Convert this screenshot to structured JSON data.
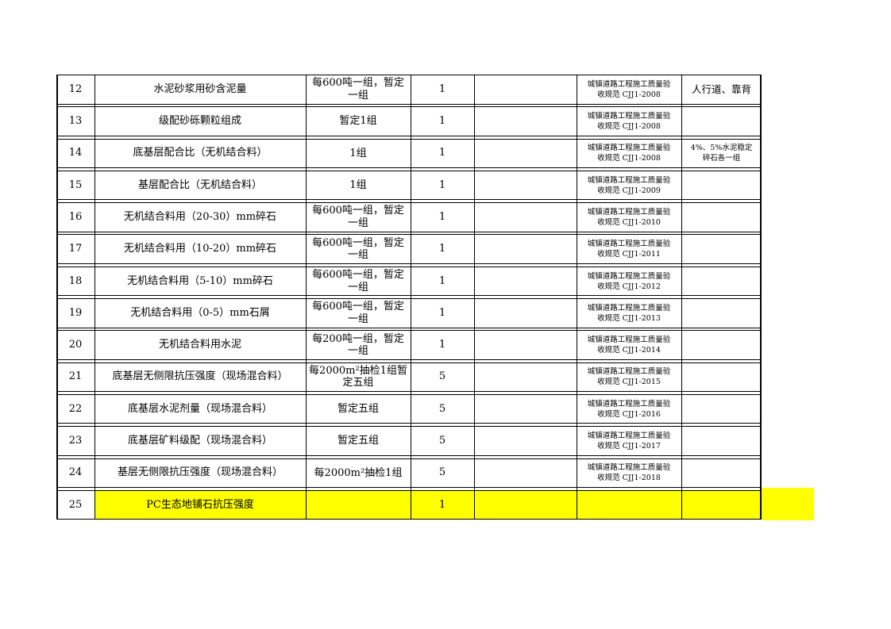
{
  "document": {
    "highlight_color": "#FFFF00",
    "rows": [
      {
        "no": "12",
        "item": "水泥砂浆用砂含泥量",
        "frequency": "每600吨一组，暂定一组",
        "quantity": "1",
        "blank": "",
        "standard": "城镇道路工程施工质量验收规范 CJJ1-2008",
        "note": "人行道、靠背",
        "highlight": false
      },
      {
        "no": "13",
        "item": "级配砂砾颗粒组成",
        "frequency": "暂定1组",
        "quantity": "1",
        "blank": "",
        "standard": "城镇道路工程施工质量验收规范 CJJ1-2008",
        "note": "",
        "highlight": false
      },
      {
        "no": "14",
        "item": "底基层配合比（无机结合料）",
        "frequency": "1组",
        "quantity": "1",
        "blank": "",
        "standard": "城镇道路工程施工质量验收规范 CJJ1-2008",
        "note": "4%、5%水泥稳定碎石各一组",
        "highlight": false
      },
      {
        "no": "15",
        "item": "基层配合比（无机结合料）",
        "frequency": "1组",
        "quantity": "1",
        "blank": "",
        "standard": "城镇道路工程施工质量验收规范 CJJ1-2009",
        "note": "",
        "highlight": false
      },
      {
        "no": "16",
        "item": "无机结合料用（20-30）mm碎石",
        "frequency": "每600吨一组，暂定一组",
        "quantity": "1",
        "blank": "",
        "standard": "城镇道路工程施工质量验收规范 CJJ1-2010",
        "note": "",
        "highlight": false
      },
      {
        "no": "17",
        "item": "无机结合料用（10-20）mm碎石",
        "frequency": "每600吨一组，暂定一组",
        "quantity": "1",
        "blank": "",
        "standard": "城镇道路工程施工质量验收规范 CJJ1-2011",
        "note": "",
        "highlight": false
      },
      {
        "no": "18",
        "item": "无机结合料用（5-10）mm碎石",
        "frequency": "每600吨一组，暂定一组",
        "quantity": "1",
        "blank": "",
        "standard": "城镇道路工程施工质量验收规范 CJJ1-2012",
        "note": "",
        "highlight": false
      },
      {
        "no": "19",
        "item": "无机结合料用（0-5）mm石屑",
        "frequency": "每600吨一组，暂定一组",
        "quantity": "1",
        "blank": "",
        "standard": "城镇道路工程施工质量验收规范 CJJ1-2013",
        "note": "",
        "highlight": false
      },
      {
        "no": "20",
        "item": "无机结合料用水泥",
        "frequency": "每200吨一组，暂定一组",
        "quantity": "1",
        "blank": "",
        "standard": "城镇道路工程施工质量验收规范 CJJ1-2014",
        "note": "",
        "highlight": false
      },
      {
        "no": "21",
        "item": "底基层无侧限抗压强度（现场混合料）",
        "frequency": "每2000m²抽检1组暂定五组",
        "quantity": "5",
        "blank": "",
        "standard": "城镇道路工程施工质量验收规范 CJJ1-2015",
        "note": "",
        "highlight": false
      },
      {
        "no": "22",
        "item": "底基层水泥剂量（现场混合料）",
        "frequency": "暂定五组",
        "quantity": "5",
        "blank": "",
        "standard": "城镇道路工程施工质量验收规范 CJJ1-2016",
        "note": "",
        "highlight": false
      },
      {
        "no": "23",
        "item": "底基层矿料级配（现场混合料）",
        "frequency": "暂定五组",
        "quantity": "5",
        "blank": "",
        "standard": "城镇道路工程施工质量验收规范 CJJ1-2017",
        "note": "",
        "highlight": false
      },
      {
        "no": "24",
        "item": "基层无侧限抗压强度（现场混合料）",
        "frequency": "每2000m²抽检1组",
        "quantity": "5",
        "blank": "",
        "standard": "城镇道路工程施工质量验收规范 CJJ1-2018",
        "note": "",
        "highlight": false
      },
      {
        "no": "25",
        "item": "PC生态地铺石抗压强度",
        "frequency": "",
        "quantity": "1",
        "blank": "",
        "standard": "",
        "note": "",
        "highlight": true
      }
    ]
  }
}
